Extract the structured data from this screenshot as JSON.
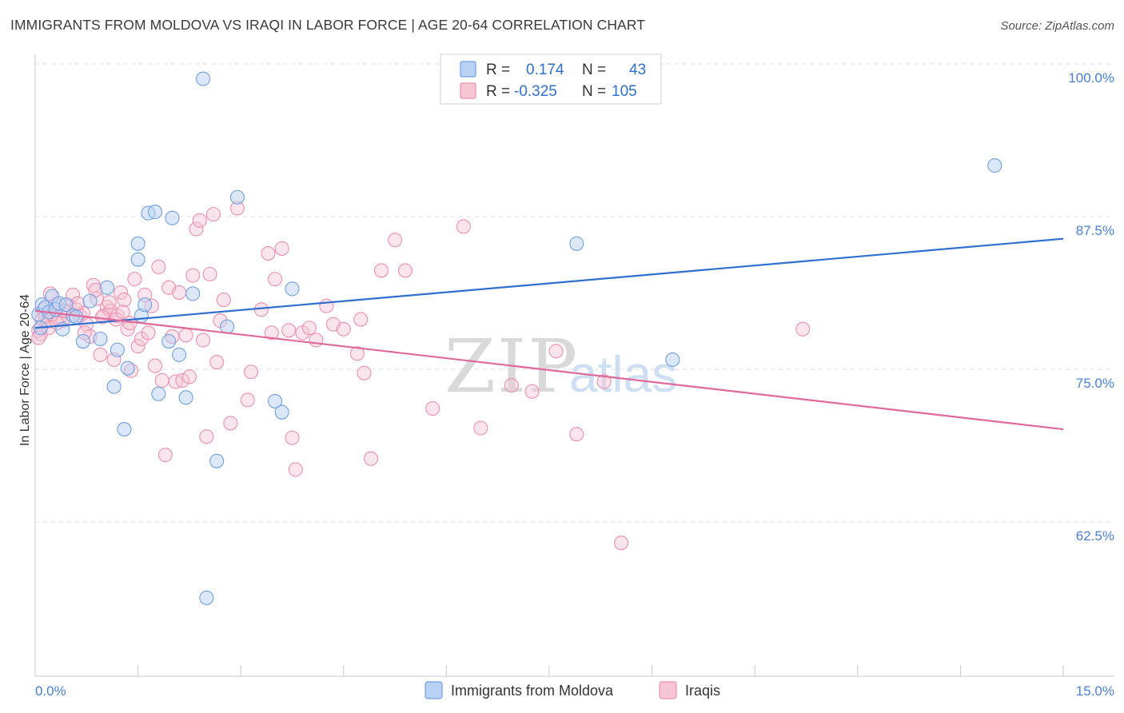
{
  "title": "IMMIGRANTS FROM MOLDOVA VS IRAQI IN LABOR FORCE | AGE 20-64 CORRELATION CHART",
  "source": "Source: ZipAtlas.com",
  "colors": {
    "moldova": "#6fa0e6",
    "moldova_fill": "#b9d1f3",
    "moldova_line": "#2f6fd0",
    "iraqi": "#ee8fae",
    "iraqi_fill": "#f7c6d5",
    "iraqi_line": "#e0689a",
    "tick_text": "#4a7fd4",
    "grid": "#dcdcdc"
  },
  "legend": {
    "rows": [
      {
        "r_label": "R =",
        "r_value": "0.174",
        "n_label": "N =",
        "n_value": "43"
      },
      {
        "r_label": "R =",
        "r_value": "-0.325",
        "n_label": "N =",
        "n_value": "105"
      }
    ]
  },
  "watermark": {
    "zip": "ZIP",
    "atlas": "atlas"
  },
  "chart_data": {
    "type": "scatter",
    "title": "IMMIGRANTS FROM MOLDOVA VS IRAQI IN LABOR FORCE | AGE 20-64 CORRELATION CHART",
    "xlabel": "",
    "ylabel": "In Labor Force | Age 20-64",
    "xlim": [
      0,
      15
    ],
    "ylim": [
      51.0,
      102.0
    ],
    "x_tick_labels": [
      "0.0%",
      "15.0%"
    ],
    "y_ticks": [
      100.0,
      87.5,
      75.0,
      62.5
    ],
    "y_tick_labels": [
      "100.0%",
      "87.5%",
      "75.0%",
      "62.5%"
    ],
    "legend_position": "bottom",
    "series": [
      {
        "name": "Immigrants from Moldova",
        "color": "#6fa0e6",
        "trend": {
          "x": [
            0,
            15
          ],
          "y": [
            79.5,
            86.8
          ]
        },
        "points": [
          [
            0.05,
            80.6
          ],
          [
            0.1,
            81.4
          ],
          [
            0.15,
            81.2
          ],
          [
            0.2,
            80.8
          ],
          [
            0.25,
            82.1
          ],
          [
            0.3,
            81.0
          ],
          [
            0.35,
            81.5
          ],
          [
            0.4,
            79.4
          ],
          [
            0.45,
            81.4
          ],
          [
            0.55,
            80.5
          ],
          [
            0.6,
            80.4
          ],
          [
            0.7,
            78.4
          ],
          [
            0.8,
            81.7
          ],
          [
            0.95,
            78.6
          ],
          [
            1.05,
            82.8
          ],
          [
            1.15,
            74.7
          ],
          [
            1.2,
            77.7
          ],
          [
            1.3,
            71.2
          ],
          [
            1.35,
            76.2
          ],
          [
            1.5,
            86.4
          ],
          [
            1.5,
            85.1
          ],
          [
            1.55,
            80.5
          ],
          [
            1.6,
            81.4
          ],
          [
            1.65,
            88.9
          ],
          [
            1.75,
            89.0
          ],
          [
            1.8,
            74.1
          ],
          [
            1.95,
            78.4
          ],
          [
            2.0,
            88.5
          ],
          [
            2.1,
            77.3
          ],
          [
            2.2,
            73.8
          ],
          [
            2.3,
            82.3
          ],
          [
            2.45,
            99.9
          ],
          [
            2.5,
            57.4
          ],
          [
            2.65,
            68.6
          ],
          [
            2.8,
            79.6
          ],
          [
            2.95,
            90.2
          ],
          [
            3.5,
            73.5
          ],
          [
            3.6,
            72.6
          ],
          [
            3.75,
            82.7
          ],
          [
            7.9,
            86.4
          ],
          [
            9.3,
            76.9
          ],
          [
            14.0,
            92.8
          ],
          [
            0.08,
            79.5
          ]
        ]
      },
      {
        "name": "Iraqis",
        "color": "#ee8fae",
        "trend": {
          "x": [
            0,
            15
          ],
          "y": [
            80.9,
            71.2
          ]
        },
        "points": [
          [
            0.05,
            79.3
          ],
          [
            0.08,
            79.0
          ],
          [
            0.1,
            80.2
          ],
          [
            0.12,
            81.0
          ],
          [
            0.15,
            80.4
          ],
          [
            0.18,
            80.0
          ],
          [
            0.2,
            79.5
          ],
          [
            0.25,
            80.6
          ],
          [
            0.3,
            81.4
          ],
          [
            0.35,
            80.3
          ],
          [
            0.4,
            80.1
          ],
          [
            0.45,
            80.9
          ],
          [
            0.5,
            81.3
          ],
          [
            0.55,
            82.2
          ],
          [
            0.6,
            81.0
          ],
          [
            0.65,
            80.5
          ],
          [
            0.7,
            80.7
          ],
          [
            0.75,
            79.8
          ],
          [
            0.8,
            78.8
          ],
          [
            0.85,
            83.0
          ],
          [
            0.9,
            81.9
          ],
          [
            0.95,
            77.3
          ],
          [
            1.0,
            80.5
          ],
          [
            1.05,
            81.2
          ],
          [
            1.1,
            80.9
          ],
          [
            1.15,
            76.9
          ],
          [
            1.2,
            80.5
          ],
          [
            1.25,
            82.4
          ],
          [
            1.3,
            81.8
          ],
          [
            1.35,
            79.4
          ],
          [
            1.4,
            76.0
          ],
          [
            1.45,
            83.5
          ],
          [
            1.5,
            78.0
          ],
          [
            1.55,
            78.6
          ],
          [
            1.6,
            82.2
          ],
          [
            1.65,
            79.1
          ],
          [
            1.7,
            81.3
          ],
          [
            1.75,
            76.4
          ],
          [
            1.8,
            84.5
          ],
          [
            1.85,
            75.2
          ],
          [
            1.9,
            69.1
          ],
          [
            1.95,
            82.8
          ],
          [
            2.0,
            78.8
          ],
          [
            2.05,
            75.1
          ],
          [
            2.1,
            82.4
          ],
          [
            2.15,
            75.2
          ],
          [
            2.2,
            78.9
          ],
          [
            2.25,
            75.5
          ],
          [
            2.3,
            83.8
          ],
          [
            2.35,
            87.6
          ],
          [
            2.4,
            88.3
          ],
          [
            2.45,
            78.5
          ],
          [
            2.5,
            70.6
          ],
          [
            2.6,
            88.8
          ],
          [
            2.65,
            76.7
          ],
          [
            2.7,
            80.1
          ],
          [
            2.75,
            81.8
          ],
          [
            2.85,
            71.7
          ],
          [
            2.95,
            89.3
          ],
          [
            3.1,
            73.6
          ],
          [
            3.15,
            75.9
          ],
          [
            3.3,
            81.0
          ],
          [
            3.4,
            85.6
          ],
          [
            3.5,
            83.5
          ],
          [
            3.6,
            86.0
          ],
          [
            3.7,
            79.3
          ],
          [
            3.75,
            70.5
          ],
          [
            3.8,
            67.9
          ],
          [
            3.9,
            79.1
          ],
          [
            4.0,
            79.5
          ],
          [
            4.1,
            78.5
          ],
          [
            4.25,
            81.3
          ],
          [
            4.35,
            79.8
          ],
          [
            4.5,
            79.4
          ],
          [
            4.7,
            77.4
          ],
          [
            4.75,
            80.2
          ],
          [
            4.8,
            75.8
          ],
          [
            4.9,
            68.8
          ],
          [
            5.05,
            84.2
          ],
          [
            5.25,
            86.7
          ],
          [
            5.4,
            84.2
          ],
          [
            5.8,
            72.9
          ],
          [
            6.25,
            87.8
          ],
          [
            6.5,
            71.3
          ],
          [
            6.95,
            74.8
          ],
          [
            7.25,
            74.3
          ],
          [
            7.6,
            77.6
          ],
          [
            7.9,
            70.8
          ],
          [
            8.3,
            75.1
          ],
          [
            8.55,
            61.9
          ],
          [
            11.2,
            79.4
          ],
          [
            0.22,
            82.3
          ],
          [
            0.32,
            79.9
          ],
          [
            0.42,
            80.9
          ],
          [
            0.62,
            81.5
          ],
          [
            0.72,
            79.1
          ],
          [
            0.88,
            82.6
          ],
          [
            0.98,
            80.4
          ],
          [
            1.08,
            81.6
          ],
          [
            1.18,
            80.2
          ],
          [
            1.28,
            80.8
          ],
          [
            1.38,
            79.9
          ],
          [
            2.55,
            83.9
          ],
          [
            3.45,
            79.1
          ],
          [
            0.05,
            78.7
          ]
        ]
      }
    ]
  },
  "bottom_legend": [
    {
      "label": "Immigrants from Moldova"
    },
    {
      "label": "Iraqis"
    }
  ]
}
